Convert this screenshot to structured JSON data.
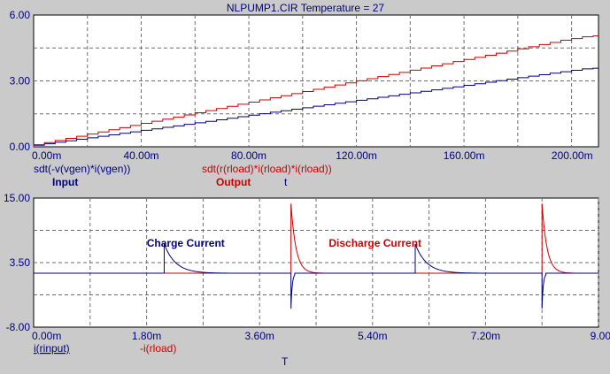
{
  "title": "NLPUMP1.CIR Temperature = 27",
  "colors": {
    "background": "#cacaca",
    "plot_bg": "#ffffff",
    "axis_text": "#000080",
    "grid": "#6e6e6e",
    "blue_trace": "#000080",
    "red_trace": "#cc0000"
  },
  "chart_data": [
    {
      "type": "line",
      "title": "NLPUMP1.CIR Temperature = 27",
      "xlabel": "t",
      "x_unit": "ms",
      "xlim": [
        0,
        210
      ],
      "ylim": [
        0,
        6
      ],
      "x_ticks": [
        0,
        40,
        80,
        120,
        160,
        200
      ],
      "x_tick_labels": [
        "0.00m",
        "40.00m",
        "80.00m",
        "120.00m",
        "160.00m",
        "200.00m"
      ],
      "y_ticks": [
        0,
        3,
        6
      ],
      "y_tick_labels": [
        "0.00",
        "3.00",
        "6.00"
      ],
      "grid": true,
      "legend_position": "below-left",
      "series": [
        {
          "name": "sdt(-v(vgen)*i(vgen))",
          "tag": "Input",
          "color": "#000080",
          "style": "staircase",
          "x": [
            0,
            20,
            40,
            60,
            80,
            100,
            120,
            140,
            160,
            180,
            200,
            210
          ],
          "values": [
            0,
            0.34,
            0.68,
            1.02,
            1.37,
            1.71,
            2.05,
            2.39,
            2.73,
            3.08,
            3.42,
            3.58
          ]
        },
        {
          "name": "sdt(r(rload)*i(rload)*i(rload))",
          "tag": "Output",
          "color": "#cc0000",
          "style": "staircase",
          "x": [
            0,
            20,
            40,
            60,
            80,
            100,
            120,
            140,
            160,
            180,
            200,
            210
          ],
          "values": [
            0,
            0.48,
            0.97,
            1.45,
            1.94,
            2.42,
            2.91,
            3.39,
            3.88,
            4.36,
            4.85,
            5.05
          ]
        }
      ]
    },
    {
      "type": "line",
      "xlabel": "T",
      "x_unit": "ms",
      "xlim": [
        0,
        9
      ],
      "ylim": [
        -8,
        15
      ],
      "x_ticks": [
        0,
        1.8,
        3.6,
        5.4,
        7.2,
        9.0
      ],
      "x_tick_labels": [
        "0.00m",
        "1.80m",
        "3.60m",
        "5.40m",
        "7.20m",
        "9.00m"
      ],
      "y_ticks": [
        -8,
        3.5,
        15
      ],
      "y_tick_labels": [
        "-8.00",
        "3.50",
        "15.00"
      ],
      "grid": true,
      "legend_position": "below-left",
      "annotations": [
        {
          "text": "Charge Current",
          "color": "#000080",
          "x": 2.0,
          "y": 7.0
        },
        {
          "text": "Discharge Current",
          "color": "#cc0000",
          "x": 4.9,
          "y": 7.0
        }
      ],
      "baseline": 1.6,
      "series": [
        {
          "name": "i(rinput)",
          "color": "#000080",
          "pulses": [
            {
              "t": 2.08,
              "peak": 6.8,
              "tau": 0.18,
              "width": 1.1
            },
            {
              "t": 4.1,
              "peak": -4.7,
              "tau": 0.02,
              "width": 0.06
            },
            {
              "t": 6.08,
              "peak": 6.8,
              "tau": 0.18,
              "width": 1.1
            },
            {
              "t": 8.1,
              "peak": -4.7,
              "tau": 0.02,
              "width": 0.06
            }
          ]
        },
        {
          "name": "-i(rload)",
          "color": "#cc0000",
          "pulses": [
            {
              "t": 4.1,
              "peak": 14.0,
              "tau": 0.08,
              "width": 0.6
            },
            {
              "t": 8.1,
              "peak": 14.0,
              "tau": 0.08,
              "width": 0.6
            }
          ]
        }
      ]
    }
  ]
}
